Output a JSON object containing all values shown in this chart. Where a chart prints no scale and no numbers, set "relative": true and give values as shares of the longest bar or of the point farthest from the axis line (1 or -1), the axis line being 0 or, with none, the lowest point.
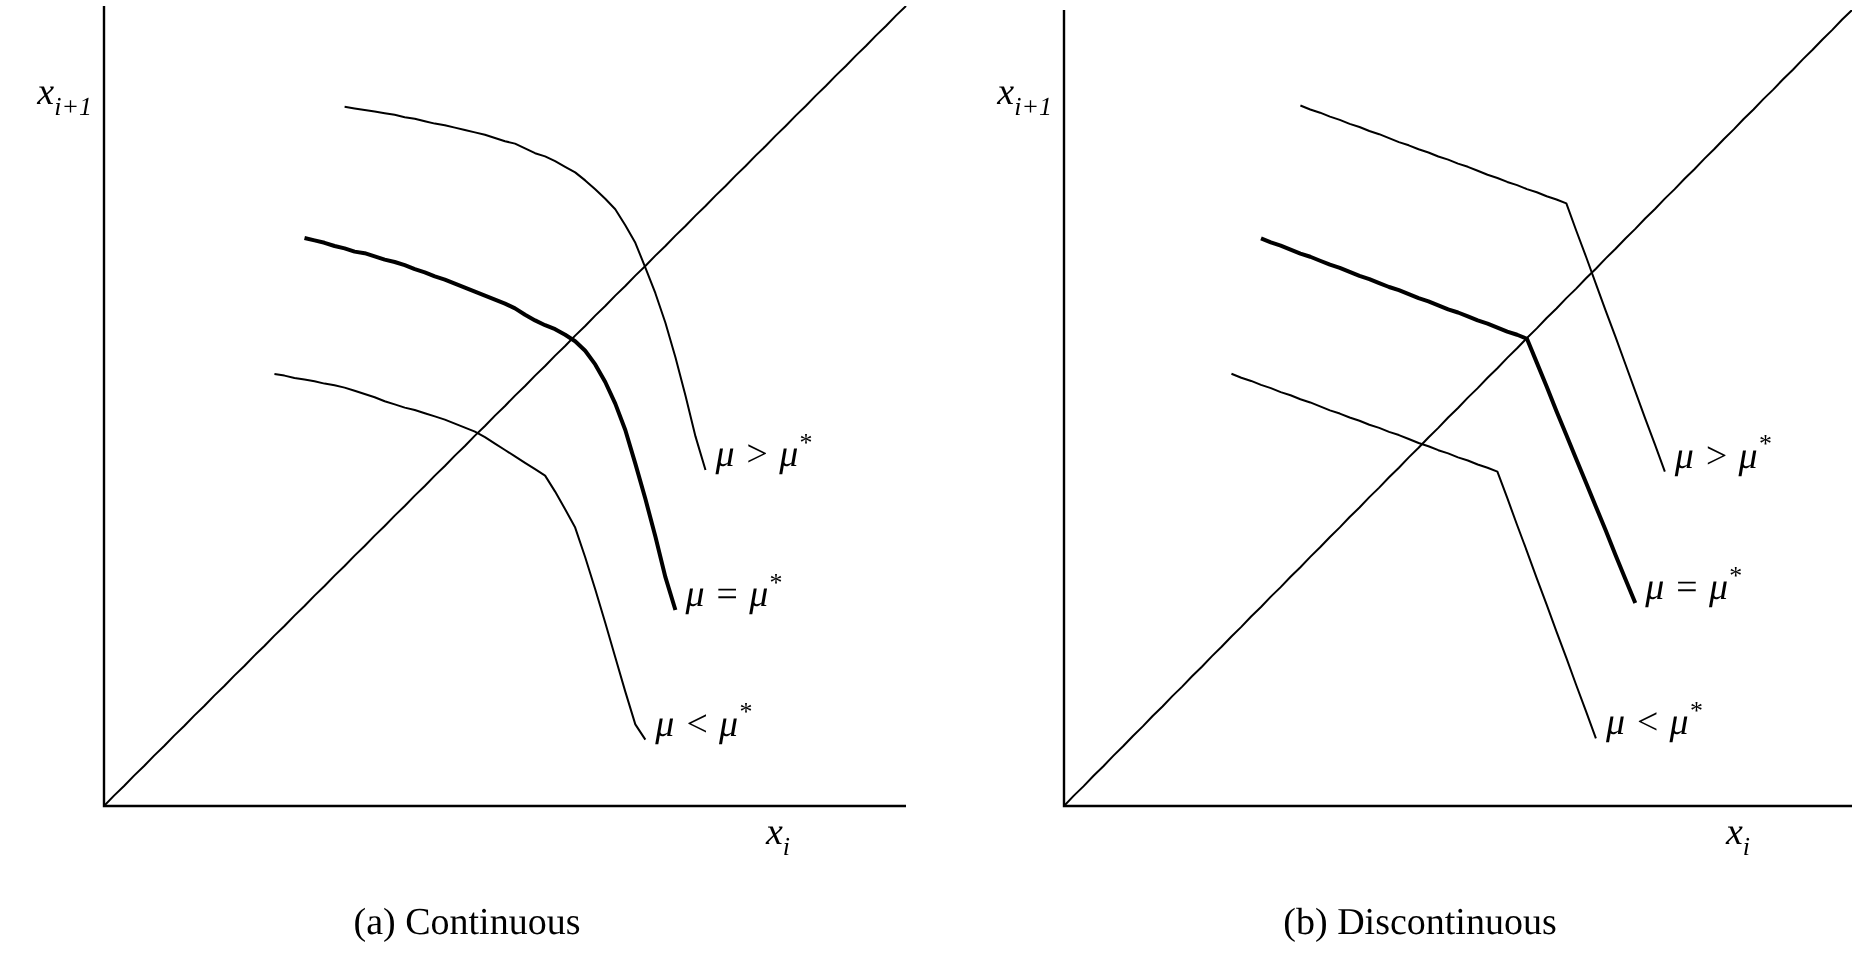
{
  "chart_data": [
    {
      "type": "line",
      "title": "(a) Continuous",
      "xlabel": "x$_{i}$",
      "ylabel": "x$_{i+1}$",
      "relative": true,
      "categories": [
        null,
        null,
        null,
        null,
        null,
        null,
        null,
        null,
        null,
        null,
        null,
        null,
        null,
        null,
        null,
        null,
        null,
        null,
        null,
        null,
        null,
        null,
        null,
        null,
        null,
        null,
        null,
        null,
        null,
        null,
        null,
        null,
        null,
        null,
        null,
        null,
        null,
        null,
        null,
        null,
        null,
        null,
        null,
        null,
        null,
        null,
        null,
        null,
        null,
        null,
        null,
        null,
        null,
        null,
        null,
        null,
        null,
        null,
        null,
        null,
        null,
        null,
        null,
        null,
        null,
        null,
        null,
        null,
        null,
        null,
        null,
        null,
        null,
        null,
        null,
        null,
        null,
        null,
        null,
        null,
        null
      ],
      "series": [
        {
          "color": "#000000",
          "values": [
            0,
            0.013,
            0.025,
            0.038,
            0.05,
            0.063,
            0.075,
            0.088,
            0.1,
            0.113,
            0.125,
            0.138,
            0.15,
            0.163,
            0.175,
            0.188,
            0.2,
            0.213,
            0.225,
            0.238,
            0.25,
            0.263,
            0.275,
            0.288,
            0.3,
            0.313,
            0.325,
            0.338,
            0.35,
            0.363,
            0.375,
            0.388,
            0.4,
            0.413,
            0.425,
            0.438,
            0.45,
            0.463,
            0.475,
            0.488,
            0.5,
            0.513,
            0.525,
            0.538,
            0.55,
            0.563,
            0.575,
            0.588,
            0.6,
            0.613,
            0.625,
            0.638,
            0.65,
            0.663,
            0.675,
            0.688,
            0.7,
            0.713,
            0.725,
            0.738,
            0.75,
            0.763,
            0.775,
            0.788,
            0.8,
            0.813,
            0.825,
            0.838,
            0.85,
            0.863,
            0.875,
            0.888,
            0.9,
            0.913,
            0.925,
            0.938,
            0.95,
            0.963,
            0.975,
            0.988,
            1
          ]
        },
        {
          "name": "μ > μ$^{*}$",
          "color": "#000000",
          "values": [
            null,
            null,
            null,
            null,
            null,
            null,
            null,
            null,
            null,
            null,
            null,
            null,
            null,
            null,
            null,
            null,
            null,
            null,
            null,
            null,
            null,
            null,
            null,
            null,
            0.874,
            0.872,
            0.87,
            0.868,
            0.866,
            0.864,
            0.861,
            0.859,
            0.856,
            0.853,
            0.851,
            0.848,
            0.845,
            0.842,
            0.839,
            0.835,
            0.831,
            0.828,
            0.822,
            0.816,
            0.812,
            0.806,
            0.799,
            0.792,
            0.782,
            0.771,
            0.759,
            0.746,
            0.726,
            0.704,
            0.673,
            0.641,
            0.604,
            0.561,
            0.513,
            0.462,
            0.42,
            null,
            null,
            null,
            null,
            null,
            null,
            null,
            null,
            null,
            null,
            null,
            null,
            null,
            null,
            null,
            null,
            null,
            null,
            null,
            null
          ]
        },
        {
          "name": "μ = μ$^{*}$",
          "color": "#000000",
          "values": [
            null,
            null,
            null,
            null,
            null,
            null,
            null,
            null,
            null,
            null,
            null,
            null,
            null,
            null,
            null,
            null,
            null,
            null,
            null,
            null,
            0.71,
            0.707,
            0.704,
            0.7,
            0.697,
            0.693,
            0.691,
            0.687,
            0.683,
            0.68,
            0.676,
            0.671,
            0.667,
            0.662,
            0.658,
            0.653,
            0.648,
            0.643,
            0.638,
            0.633,
            0.628,
            0.622,
            0.614,
            0.607,
            0.601,
            0.596,
            0.589,
            0.581,
            0.569,
            0.552,
            0.53,
            0.503,
            0.47,
            0.428,
            0.384,
            0.337,
            0.286,
            0.245,
            null,
            null,
            null,
            null,
            null,
            null,
            null,
            null,
            null,
            null,
            null,
            null,
            null,
            null,
            null,
            null,
            null,
            null,
            null,
            null,
            null,
            null,
            null
          ]
        },
        {
          "name": "μ < μ$^{*}$",
          "color": "#000000",
          "values": [
            null,
            null,
            null,
            null,
            null,
            null,
            null,
            null,
            null,
            null,
            null,
            null,
            null,
            null,
            null,
            null,
            null,
            0.54,
            0.538,
            0.535,
            0.533,
            0.531,
            0.528,
            0.526,
            0.523,
            0.519,
            0.515,
            0.511,
            0.506,
            0.502,
            0.498,
            0.495,
            0.491,
            0.487,
            0.483,
            0.478,
            0.473,
            0.468,
            0.461,
            0.453,
            0.445,
            0.437,
            0.429,
            0.421,
            0.413,
            0.393,
            0.371,
            0.348,
            0.311,
            0.271,
            0.229,
            0.186,
            0.143,
            0.102,
            0.083,
            null,
            null,
            null,
            null,
            null,
            null,
            null,
            null,
            null,
            null,
            null,
            null,
            null,
            null,
            null,
            null,
            null,
            null,
            null,
            null,
            null,
            null,
            null,
            null,
            null,
            null
          ]
        }
      ]
    },
    {
      "type": "line",
      "title": "(b) Discontinuous",
      "xlabel": "x$_{i}$",
      "ylabel": "x$_{i+1}$",
      "relative": true,
      "categories": [
        null,
        null,
        null,
        null,
        null,
        null,
        null,
        null,
        null,
        null,
        null,
        null,
        null,
        null,
        null,
        null,
        null,
        null,
        null,
        null,
        null,
        null,
        null,
        null,
        null,
        null,
        null,
        null,
        null,
        null,
        null,
        null,
        null,
        null,
        null,
        null,
        null,
        null,
        null,
        null,
        null,
        null,
        null,
        null,
        null,
        null,
        null,
        null,
        null,
        null,
        null,
        null,
        null,
        null,
        null,
        null,
        null,
        null,
        null,
        null,
        null,
        null,
        null,
        null,
        null,
        null,
        null,
        null,
        null,
        null,
        null,
        null,
        null,
        null,
        null,
        null,
        null,
        null,
        null,
        null,
        null
      ],
      "series": [
        {
          "color": "#000000",
          "values": [
            0,
            0.013,
            0.025,
            0.038,
            0.05,
            0.063,
            0.075,
            0.088,
            0.1,
            0.113,
            0.125,
            0.138,
            0.15,
            0.163,
            0.175,
            0.188,
            0.2,
            0.213,
            0.225,
            0.238,
            0.25,
            0.263,
            0.275,
            0.288,
            0.3,
            0.313,
            0.325,
            0.338,
            0.35,
            0.363,
            0.375,
            0.388,
            0.4,
            0.413,
            0.425,
            0.438,
            0.45,
            0.463,
            0.475,
            0.488,
            0.5,
            0.513,
            0.525,
            0.538,
            0.55,
            0.563,
            0.575,
            0.588,
            0.6,
            0.613,
            0.625,
            0.638,
            0.65,
            0.663,
            0.675,
            0.688,
            0.7,
            0.713,
            0.725,
            0.738,
            0.75,
            0.763,
            0.775,
            0.788,
            0.8,
            0.813,
            0.825,
            0.838,
            0.85,
            0.863,
            0.875,
            0.888,
            0.9,
            0.913,
            0.925,
            0.938,
            0.95,
            0.963,
            0.975,
            0.988,
            1
          ]
        },
        {
          "name": "μ > μ$^{*}$",
          "color": "#000000",
          "values": [
            null,
            null,
            null,
            null,
            null,
            null,
            null,
            null,
            null,
            null,
            null,
            null,
            null,
            null,
            null,
            null,
            null,
            null,
            null,
            null,
            null,
            null,
            null,
            null,
            0.88,
            0.875,
            0.871,
            0.866,
            0.862,
            0.857,
            0.853,
            0.848,
            0.844,
            0.839,
            0.834,
            0.83,
            0.825,
            0.821,
            0.816,
            0.812,
            0.807,
            0.803,
            0.798,
            0.793,
            0.789,
            0.784,
            0.78,
            0.775,
            0.771,
            0.766,
            0.762,
            0.757,
            0.723,
            0.69,
            0.656,
            0.622,
            0.589,
            0.555,
            0.521,
            0.487,
            0.454,
            0.42,
            null,
            null,
            null,
            null,
            null,
            null,
            null,
            null,
            null,
            null,
            null,
            null,
            null,
            null,
            null,
            null,
            null,
            null,
            null
          ]
        },
        {
          "name": "μ = μ$^{*}$",
          "color": "#000000",
          "values": [
            null,
            null,
            null,
            null,
            null,
            null,
            null,
            null,
            null,
            null,
            null,
            null,
            null,
            null,
            null,
            null,
            null,
            null,
            null,
            null,
            0.713,
            0.708,
            0.704,
            0.699,
            0.694,
            0.69,
            0.685,
            0.68,
            0.676,
            0.671,
            0.666,
            0.662,
            0.657,
            0.652,
            0.648,
            0.643,
            0.638,
            0.634,
            0.629,
            0.624,
            0.62,
            0.615,
            0.61,
            0.606,
            0.601,
            0.596,
            0.592,
            0.587,
            0.557,
            0.527,
            0.496,
            0.466,
            0.436,
            0.406,
            0.376,
            0.346,
            0.315,
            0.285,
            0.255,
            null,
            null,
            null,
            null,
            null,
            null,
            null,
            null,
            null,
            null,
            null,
            null,
            null,
            null,
            null,
            null,
            null,
            null,
            null,
            null,
            null,
            null
          ]
        },
        {
          "name": "μ < μ$^{*}$",
          "color": "#000000",
          "values": [
            null,
            null,
            null,
            null,
            null,
            null,
            null,
            null,
            null,
            null,
            null,
            null,
            null,
            null,
            null,
            null,
            null,
            0.543,
            0.538,
            0.534,
            0.529,
            0.525,
            0.52,
            0.516,
            0.511,
            0.507,
            0.502,
            0.497,
            0.493,
            0.488,
            0.484,
            0.479,
            0.475,
            0.47,
            0.466,
            0.461,
            0.456,
            0.452,
            0.447,
            0.443,
            0.438,
            0.434,
            0.429,
            0.425,
            0.42,
            0.387,
            0.353,
            0.32,
            0.286,
            0.253,
            0.219,
            0.186,
            0.152,
            0.119,
            0.085,
            null,
            null,
            null,
            null,
            null,
            null,
            null,
            null,
            null,
            null,
            null,
            null,
            null,
            null,
            null,
            null,
            null,
            null,
            null,
            null,
            null,
            null,
            null,
            null,
            null,
            null
          ]
        }
      ]
    }
  ]
}
